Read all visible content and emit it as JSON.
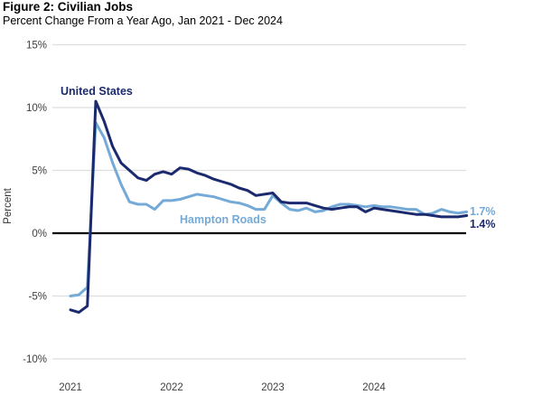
{
  "header": {
    "title": "Figure 2: Civilian Jobs",
    "subtitle": "Percent Change From a Year Ago, Jan 2021 - Dec 2024"
  },
  "chart_data": {
    "type": "line",
    "title": "Figure 2: Civilian Jobs",
    "subtitle": "Percent Change From a Year Ago, Jan 2021 - Dec 2024",
    "ylabel": "Percent",
    "ylim": [
      -10,
      15
    ],
    "yticks": [
      15,
      10,
      5,
      0,
      -5,
      -10
    ],
    "ytick_suffix": "%",
    "xticks": [
      "2021",
      "2022",
      "2023",
      "2024"
    ],
    "x_unit": "month",
    "x_range": [
      "Jan 2021",
      "Dec 2024"
    ],
    "grid": "horizontal",
    "zero_line": true,
    "legend_position": "inline-labels",
    "colors": {
      "grid": "#dedede",
      "zero_line": "#000000",
      "axis_text": "#404040",
      "navy": "#1b2a6e",
      "light_blue": "#74aad8"
    },
    "series": [
      {
        "name": "United States",
        "color": "#1b2a6e",
        "end_label": "1.4%",
        "values": [
          -6.1,
          -6.3,
          -5.8,
          10.5,
          8.9,
          6.9,
          5.6,
          5.0,
          4.4,
          4.2,
          4.7,
          4.9,
          4.7,
          5.2,
          5.1,
          4.8,
          4.6,
          4.3,
          4.1,
          3.9,
          3.6,
          3.4,
          3.0,
          3.1,
          3.2,
          2.5,
          2.4,
          2.4,
          2.4,
          2.2,
          2.0,
          1.9,
          2.0,
          2.1,
          2.1,
          1.7,
          2.0,
          1.9,
          1.8,
          1.7,
          1.6,
          1.5,
          1.5,
          1.4,
          1.3,
          1.3,
          1.3,
          1.4
        ]
      },
      {
        "name": "Hampton Roads",
        "color": "#74aad8",
        "end_label": "1.7%",
        "values": [
          -5.0,
          -4.9,
          -4.3,
          8.8,
          7.6,
          5.6,
          3.9,
          2.5,
          2.3,
          2.3,
          1.9,
          2.6,
          2.6,
          2.7,
          2.9,
          3.1,
          3.0,
          2.9,
          2.7,
          2.5,
          2.4,
          2.2,
          1.9,
          1.9,
          3.0,
          2.4,
          1.9,
          1.8,
          2.0,
          1.7,
          1.8,
          2.1,
          2.3,
          2.3,
          2.2,
          2.1,
          2.2,
          2.1,
          2.1,
          2.0,
          1.9,
          1.9,
          1.5,
          1.6,
          1.9,
          1.7,
          1.6,
          1.7
        ]
      }
    ]
  }
}
